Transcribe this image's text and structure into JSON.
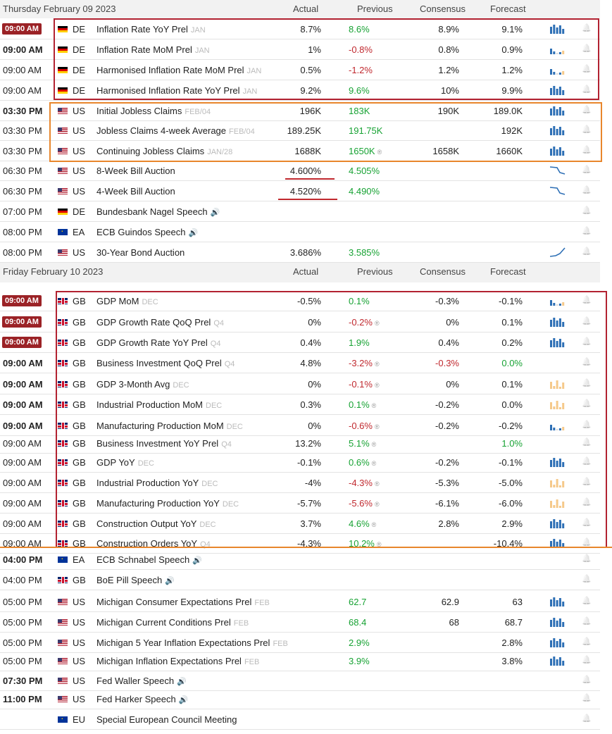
{
  "day1": {
    "title": "Thursday February 09 2023",
    "cols": [
      "Actual",
      "Previous",
      "Consensus",
      "Forecast"
    ],
    "rows": [
      {
        "time": "09:00 AM",
        "badge": true,
        "country": "DE",
        "flag": "de",
        "event": "Inflation Rate YoY Prel",
        "period": "JAN",
        "actual": "8.7%",
        "previous": "8.6%",
        "prev_color": "green",
        "consensus": "8.9%",
        "forecast": "9.1%",
        "spark": "bars-blue"
      },
      {
        "time": "09:00 AM",
        "bold": true,
        "country": "DE",
        "flag": "de",
        "event": "Inflation Rate MoM Prel",
        "period": "JAN",
        "actual": "1%",
        "previous": "-0.8%",
        "prev_color": "red",
        "consensus": "0.8%",
        "forecast": "0.9%",
        "spark": "bars-mixed"
      },
      {
        "time": "09:00 AM",
        "country": "DE",
        "flag": "de",
        "event": "Harmonised Inflation Rate MoM Prel",
        "period": "JAN",
        "actual": "0.5%",
        "previous": "-1.2%",
        "prev_color": "red",
        "consensus": "1.2%",
        "forecast": "1.2%",
        "spark": "bars-mixed"
      },
      {
        "time": "09:00 AM",
        "country": "DE",
        "flag": "de",
        "event": "Harmonised Inflation Rate YoY Prel",
        "period": "JAN",
        "actual": "9.2%",
        "previous": "9.6%",
        "prev_color": "green",
        "consensus": "10%",
        "forecast": "9.9%",
        "spark": "bars-blue"
      },
      {
        "time": "03:30 PM",
        "bold": true,
        "country": "US",
        "flag": "us",
        "event": "Initial Jobless Claims",
        "period": "FEB/04",
        "actual": "196K",
        "previous": "183K",
        "prev_color": "green",
        "consensus": "190K",
        "forecast": "189.0K",
        "spark": "bars-blue"
      },
      {
        "time": "03:30 PM",
        "country": "US",
        "flag": "us",
        "event": "Jobless Claims 4-week Average",
        "period": "FEB/04",
        "actual": "189.25K",
        "previous": "191.75K",
        "prev_color": "green",
        "consensus": "",
        "forecast": "192K",
        "spark": "bars-blue"
      },
      {
        "time": "03:30 PM",
        "country": "US",
        "flag": "us",
        "event": "Continuing Jobless Claims",
        "period": "JAN/28",
        "actual": "1688K",
        "previous": "1650K",
        "prev_color": "green",
        "revised": "®",
        "consensus": "1658K",
        "forecast": "1660K",
        "spark": "bars-blue"
      },
      {
        "time": "06:30 PM",
        "country": "US",
        "flag": "us",
        "event": "8-Week Bill Auction",
        "period": "",
        "actual": "4.600%",
        "previous": "4.505%",
        "prev_color": "green",
        "consensus": "",
        "forecast": "",
        "spark": "line-down"
      },
      {
        "time": "06:30 PM",
        "country": "US",
        "flag": "us",
        "event": "4-Week Bill Auction",
        "period": "",
        "actual": "4.520%",
        "previous": "4.490%",
        "prev_color": "green",
        "consensus": "",
        "forecast": "",
        "spark": "line-down"
      },
      {
        "time": "07:00 PM",
        "country": "DE",
        "flag": "de",
        "event": "Bundesbank Nagel Speech",
        "speech": true,
        "period": "",
        "actual": "",
        "previous": "",
        "consensus": "",
        "forecast": "",
        "spark": ""
      },
      {
        "time": "08:00 PM",
        "country": "EA",
        "flag": "eu",
        "event": "ECB Guindos Speech",
        "speech": true,
        "period": "",
        "actual": "",
        "previous": "",
        "consensus": "",
        "forecast": "",
        "spark": ""
      },
      {
        "time": "08:00 PM",
        "country": "US",
        "flag": "us",
        "event": "30-Year Bond Auction",
        "period": "",
        "actual": "3.686%",
        "previous": "3.585%",
        "prev_color": "green",
        "consensus": "",
        "forecast": "",
        "spark": "line-up"
      }
    ]
  },
  "day2": {
    "title": "Friday February 10 2023",
    "cols": [
      "Actual",
      "Previous",
      "Consensus",
      "Forecast"
    ],
    "rows": [
      {
        "time": "09:00 AM",
        "badge": true,
        "country": "GB",
        "flag": "gb",
        "event": "GDP MoM",
        "period": "DEC",
        "actual": "-0.5%",
        "previous": "0.1%",
        "prev_color": "green",
        "consensus": "-0.3%",
        "forecast": "-0.1%",
        "spark": "bars-mixed"
      },
      {
        "time": "09:00 AM",
        "badge": true,
        "country": "GB",
        "flag": "gb",
        "event": "GDP Growth Rate QoQ Prel",
        "period": "Q4",
        "actual": "0%",
        "previous": "-0.2%",
        "prev_color": "red",
        "revised": "®",
        "consensus": "0%",
        "forecast": "0.1%",
        "spark": "bars-blue"
      },
      {
        "time": "09:00 AM",
        "badge": true,
        "country": "GB",
        "flag": "gb",
        "event": "GDP Growth Rate YoY Prel",
        "period": "Q4",
        "actual": "0.4%",
        "previous": "1.9%",
        "prev_color": "green",
        "consensus": "0.4%",
        "forecast": "0.2%",
        "spark": "bars-blue"
      },
      {
        "time": "09:00 AM",
        "bold": true,
        "country": "GB",
        "flag": "gb",
        "event": "Business Investment QoQ Prel",
        "period": "Q4",
        "actual": "4.8%",
        "previous": "-3.2%",
        "prev_color": "red",
        "revised": "®",
        "consensus": "-0.3%",
        "cons_color": "red",
        "forecast": "0.0%",
        "fc_color": "green",
        "spark": ""
      },
      {
        "time": "09:00 AM",
        "bold": true,
        "country": "GB",
        "flag": "gb",
        "event": "GDP 3-Month Avg",
        "period": "DEC",
        "actual": "0%",
        "previous": "-0.1%",
        "prev_color": "red",
        "revised": "®",
        "consensus": "0%",
        "forecast": "0.1%",
        "spark": "bars-orange"
      },
      {
        "time": "09:00 AM",
        "bold": true,
        "country": "GB",
        "flag": "gb",
        "event": "Industrial Production MoM",
        "period": "DEC",
        "actual": "0.3%",
        "previous": "0.1%",
        "prev_color": "green",
        "revised": "®",
        "consensus": "-0.2%",
        "forecast": "0.0%",
        "spark": "bars-orange"
      },
      {
        "time": "09:00 AM",
        "bold": true,
        "country": "GB",
        "flag": "gb",
        "event": "Manufacturing Production MoM",
        "period": "DEC",
        "actual": "0%",
        "previous": "-0.6%",
        "prev_color": "red",
        "revised": "®",
        "consensus": "-0.2%",
        "forecast": "-0.2%",
        "spark": "bars-mixed"
      },
      {
        "time": "09:00 AM",
        "country": "GB",
        "flag": "gb",
        "event": "Business Investment YoY Prel",
        "period": "Q4",
        "actual": "13.2%",
        "previous": "5.1%",
        "prev_color": "green",
        "revised": "®",
        "consensus": "",
        "forecast": "1.0%",
        "fc_color": "green",
        "spark": ""
      },
      {
        "time": "09:00 AM",
        "country": "GB",
        "flag": "gb",
        "event": "GDP YoY",
        "period": "DEC",
        "actual": "-0.1%",
        "previous": "0.6%",
        "prev_color": "green",
        "revised": "®",
        "consensus": "-0.2%",
        "forecast": "-0.1%",
        "spark": "bars-blue"
      },
      {
        "time": "09:00 AM",
        "country": "GB",
        "flag": "gb",
        "event": "Industrial Production YoY",
        "period": "DEC",
        "actual": "-4%",
        "previous": "-4.3%",
        "prev_color": "red",
        "revised": "®",
        "consensus": "-5.3%",
        "forecast": "-5.0%",
        "spark": "bars-orange"
      },
      {
        "time": "09:00 AM",
        "country": "GB",
        "flag": "gb",
        "event": "Manufacturing Production YoY",
        "period": "DEC",
        "actual": "-5.7%",
        "previous": "-5.6%",
        "prev_color": "red",
        "revised": "®",
        "consensus": "-6.1%",
        "forecast": "-6.0%",
        "spark": "bars-orange"
      },
      {
        "time": "09:00 AM",
        "country": "GB",
        "flag": "gb",
        "event": "Construction Output YoY",
        "period": "DEC",
        "actual": "3.7%",
        "previous": "4.6%",
        "prev_color": "green",
        "revised": "®",
        "consensus": "2.8%",
        "forecast": "2.9%",
        "spark": "bars-blue"
      },
      {
        "time": "09:00 AM",
        "country": "GB",
        "flag": "gb",
        "event": "Construction Orders YoY",
        "period": "Q4",
        "actual": "-4.3%",
        "previous": "10.2%",
        "prev_color": "green",
        "revised": "®",
        "consensus": "",
        "forecast": "-10.4%",
        "spark": "bars-blue"
      },
      {
        "time": "04:00 PM",
        "bold": true,
        "country": "EA",
        "flag": "eu",
        "event": "ECB Schnabel Speech",
        "speech": true,
        "period": "",
        "actual": "",
        "previous": "",
        "consensus": "",
        "forecast": "",
        "spark": ""
      },
      {
        "time": "04:00 PM",
        "country": "GB",
        "flag": "gb",
        "event": "BoE Pill Speech",
        "speech": true,
        "period": "",
        "actual": "",
        "previous": "",
        "consensus": "",
        "forecast": "",
        "spark": ""
      },
      {
        "time": "05:00 PM",
        "country": "US",
        "flag": "us",
        "event": "Michigan Consumer Expectations Prel",
        "period": "FEB",
        "actual": "",
        "previous": "62.7",
        "prev_color": "green",
        "consensus": "62.9",
        "forecast": "63",
        "spark": "bars-blue"
      },
      {
        "time": "05:00 PM",
        "country": "US",
        "flag": "us",
        "event": "Michigan Current Conditions Prel",
        "period": "FEB",
        "actual": "",
        "previous": "68.4",
        "prev_color": "green",
        "consensus": "68",
        "forecast": "68.7",
        "spark": "bars-blue"
      },
      {
        "time": "05:00 PM",
        "country": "US",
        "flag": "us",
        "event": "Michigan 5 Year Inflation Expectations  Prel",
        "period": "FEB",
        "actual": "",
        "previous": "2.9%",
        "prev_color": "green",
        "consensus": "",
        "forecast": "2.8%",
        "spark": "bars-blue"
      },
      {
        "time": "05:00 PM",
        "country": "US",
        "flag": "us",
        "event": "Michigan Inflation Expectations Prel",
        "period": "FEB",
        "actual": "",
        "previous": "3.9%",
        "prev_color": "green",
        "consensus": "",
        "forecast": "3.8%",
        "spark": "bars-blue"
      },
      {
        "time": "07:30 PM",
        "bold": true,
        "country": "US",
        "flag": "us",
        "event": "Fed Waller Speech",
        "speech": true,
        "period": "",
        "actual": "",
        "previous": "",
        "consensus": "",
        "forecast": "",
        "spark": ""
      },
      {
        "time": "11:00 PM",
        "bold": true,
        "country": "US",
        "flag": "us",
        "event": "Fed Harker Speech",
        "speech": true,
        "period": "",
        "actual": "",
        "previous": "",
        "consensus": "",
        "forecast": "",
        "spark": ""
      },
      {
        "time": "",
        "country": "EU",
        "flag": "eu",
        "event": "Special European Council Meeting",
        "period": "",
        "actual": "",
        "previous": "",
        "consensus": "",
        "forecast": "",
        "spark": ""
      }
    ]
  },
  "speech_icon": "speaker-icon",
  "bell_icon": "bell-icon",
  "colors": {
    "badge": "#9b2226",
    "green": "#17a233",
    "red": "#c0282e",
    "spark_blue": "#2d6fb5",
    "spark_orange": "#f5c98a",
    "box_red": "#b22231",
    "box_orange": "#e8862c"
  }
}
